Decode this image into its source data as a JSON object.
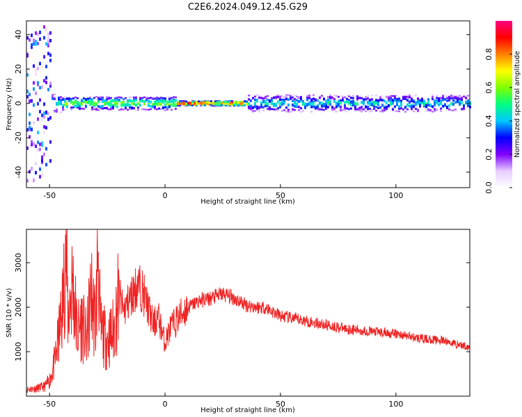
{
  "figure": {
    "title": "C2E6.2024.049.12.45.G29"
  },
  "chart_data": [
    {
      "type": "heatmap",
      "xlabel": "Height of straight line (km)",
      "ylabel": "Frequency (Hz)",
      "xlim": [
        -60,
        132
      ],
      "ylim": [
        -49,
        48
      ],
      "x_ticks": [
        -50,
        0,
        50,
        100
      ],
      "y_ticks": [
        -40,
        -20,
        0,
        20,
        40
      ],
      "colorbar": {
        "label": "Normalized spectral amplitude",
        "range": [
          0,
          1
        ],
        "ticks": [
          "0.0",
          "0.2",
          "0.4",
          "0.6",
          "0.8"
        ],
        "colormap": [
          "#ffffff",
          "#e6ccff",
          "#8000ff",
          "#0000ff",
          "#00c8ff",
          "#00ff80",
          "#80ff00",
          "#ffff00",
          "#ff8000",
          "#ff0000",
          "#ff0080"
        ]
      },
      "band": [
        {
          "x_from": -60,
          "x_to": -50,
          "freq_spread_hz": 45,
          "amplitude": 0.15
        },
        {
          "x_from": -50,
          "x_to": -45,
          "freq_spread_hz": 6,
          "amplitude": 0.45
        },
        {
          "x_from": -45,
          "x_to": 5,
          "freq_spread_hz": 4,
          "amplitude": 0.6
        },
        {
          "x_from": 5,
          "x_to": 35,
          "freq_spread_hz": 1.5,
          "amplitude": 0.9
        },
        {
          "x_from": 35,
          "x_to": 132,
          "freq_spread_hz": 5,
          "amplitude": 0.45
        }
      ]
    },
    {
      "type": "line",
      "xlabel": "Height of straight line (km)",
      "ylabel": "SNR (10 * v/v)",
      "xlim": [
        -60,
        132
      ],
      "ylim": [
        0,
        3750
      ],
      "x_ticks": [
        -50,
        0,
        50,
        100
      ],
      "y_ticks": [
        1000,
        2000,
        3000
      ],
      "color": "#ee2222",
      "series": [
        {
          "x": [
            -60,
            -55,
            -52,
            -50,
            -48,
            -46,
            -44,
            -43,
            -42,
            -40,
            -38,
            -36,
            -34,
            -32,
            -30,
            -29,
            -28,
            -26,
            -24,
            -22,
            -20,
            -18,
            -15,
            -12,
            -10,
            -8,
            -5,
            -3,
            0,
            2,
            5,
            8,
            10,
            15,
            20,
            25,
            30,
            35,
            40,
            43,
            45,
            50,
            60,
            70,
            80,
            90,
            100,
            110,
            120,
            132
          ],
          "y": [
            150,
            180,
            220,
            350,
            700,
            1300,
            2200,
            3600,
            1800,
            2600,
            1400,
            1700,
            1200,
            2300,
            1600,
            3500,
            1500,
            1300,
            1300,
            1500,
            2300,
            1900,
            2200,
            2500,
            2400,
            2100,
            1600,
            1800,
            1200,
            1500,
            1700,
            1900,
            2000,
            2150,
            2200,
            2300,
            2200,
            2050,
            2000,
            2000,
            1950,
            1800,
            1700,
            1600,
            1500,
            1450,
            1400,
            1300,
            1250,
            1100
          ]
        }
      ]
    }
  ]
}
